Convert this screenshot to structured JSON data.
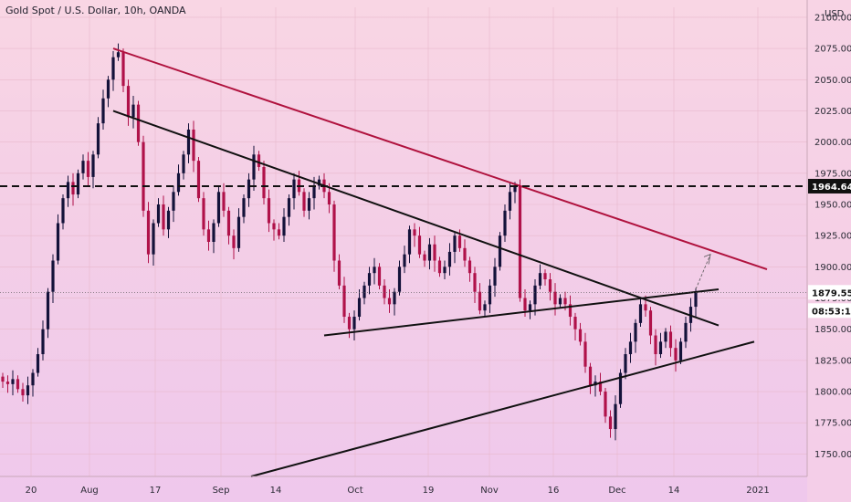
{
  "title": "Gold Spot / U.S. Dollar, 10h, OANDA",
  "currency": "USD",
  "colors": {
    "up": "#14123a",
    "down": "#b0124a",
    "resistance_line": "#b0123e",
    "trend_line": "#111111",
    "dashed_level": "#111111"
  },
  "chart_data": {
    "type": "candlestick",
    "y_axis": {
      "ticks": [
        "1750.000",
        "1775.000",
        "1800.000",
        "1825.000",
        "1850.000",
        "1875.000",
        "1900.000",
        "1925.000",
        "1950.000",
        "1975.000",
        "2000.000",
        "2025.000",
        "2050.000",
        "2075.000",
        "2100.000"
      ],
      "range": [
        1732,
        2108
      ]
    },
    "x_axis": {
      "ticks": [
        "20",
        "Aug",
        "17",
        "Sep",
        "14",
        "Oct",
        "19",
        "Nov",
        "16",
        "Dec",
        "14",
        "2021"
      ]
    },
    "price_labels": {
      "horizontal_level": "1964.646",
      "last_price": "1879.552",
      "countdown": "08:53:13"
    },
    "series_close": [
      1808,
      1806,
      1810,
      1802,
      1797,
      1805,
      1815,
      1830,
      1850,
      1880,
      1905,
      1935,
      1955,
      1968,
      1958,
      1975,
      1985,
      1972,
      1990,
      2015,
      2035,
      2050,
      2068,
      2072,
      2045,
      2020,
      2030,
      2000,
      1945,
      1910,
      1935,
      1950,
      1930,
      1945,
      1960,
      1975,
      1990,
      2010,
      1985,
      1955,
      1930,
      1920,
      1935,
      1960,
      1945,
      1925,
      1915,
      1940,
      1955,
      1970,
      1990,
      1980,
      1955,
      1935,
      1930,
      1925,
      1940,
      1955,
      1970,
      1960,
      1945,
      1955,
      1965,
      1970,
      1960,
      1950,
      1905,
      1885,
      1860,
      1850,
      1860,
      1875,
      1885,
      1895,
      1900,
      1885,
      1875,
      1870,
      1880,
      1900,
      1910,
      1930,
      1925,
      1910,
      1905,
      1918,
      1905,
      1895,
      1900,
      1912,
      1925,
      1915,
      1905,
      1895,
      1880,
      1865,
      1870,
      1885,
      1900,
      1925,
      1945,
      1960,
      1965,
      1875,
      1865,
      1870,
      1885,
      1895,
      1890,
      1880,
      1870,
      1875,
      1870,
      1860,
      1850,
      1840,
      1820,
      1805,
      1808,
      1800,
      1780,
      1770,
      1790,
      1815,
      1830,
      1840,
      1855,
      1870,
      1865,
      1845,
      1830,
      1840,
      1848,
      1835,
      1825,
      1840,
      1855,
      1868,
      1880
    ],
    "annotations": {
      "resistance": [
        {
          "date": "Aug 7",
          "price": 2075
        },
        {
          "date": "Jan 1",
          "price": 1898
        }
      ],
      "upper_trend": [
        {
          "date": "Aug 7",
          "price": 2025
        },
        {
          "date": "Dec 21",
          "price": 1853
        }
      ],
      "neckline": [
        {
          "date": "Sep 25",
          "price": 1845
        },
        {
          "date": "Dec 21",
          "price": 1882
        }
      ],
      "support": [
        {
          "date": "Sep 11",
          "price": 1732
        },
        {
          "date": "Dec 28",
          "price": 1840
        }
      ]
    }
  }
}
